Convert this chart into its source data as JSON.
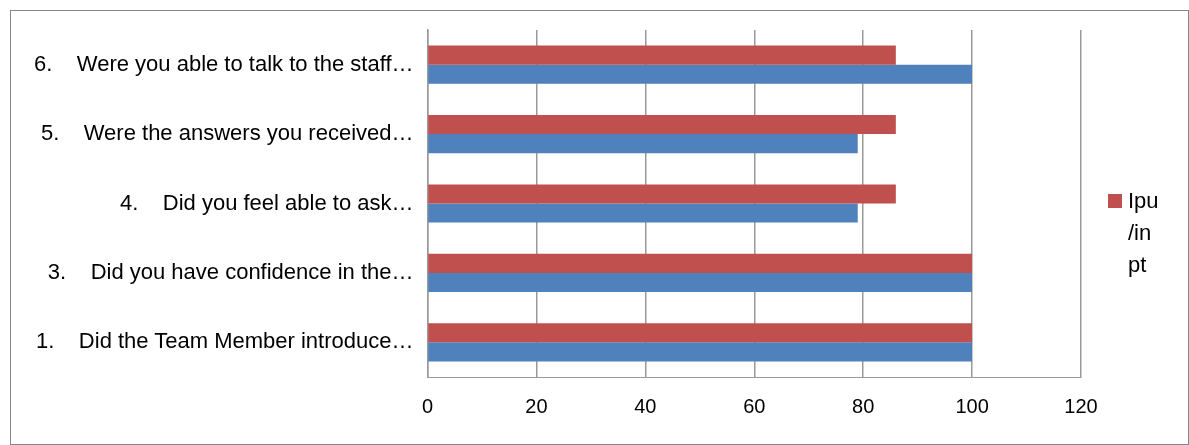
{
  "chart_data": {
    "type": "bar",
    "orientation": "horizontal",
    "categories": [
      "6.    Were you able to talk to the staff…",
      "5.    Were the answers you received…",
      "4.    Did you feel able to ask…",
      "3.    Did you have confidence in the…",
      "1.    Did the Team Member introduce…"
    ],
    "series": [
      {
        "name": "Ipu /in pt",
        "color": "#c0504d",
        "values": [
          86,
          86,
          86,
          100,
          100
        ]
      },
      {
        "color": "#4f81bd",
        "values": [
          100,
          79,
          79,
          100,
          100
        ]
      }
    ],
    "xlim": [
      0,
      120
    ],
    "xticks": [
      0,
      20,
      40,
      60,
      80,
      100,
      120
    ],
    "grid": "x",
    "legend": "right"
  }
}
